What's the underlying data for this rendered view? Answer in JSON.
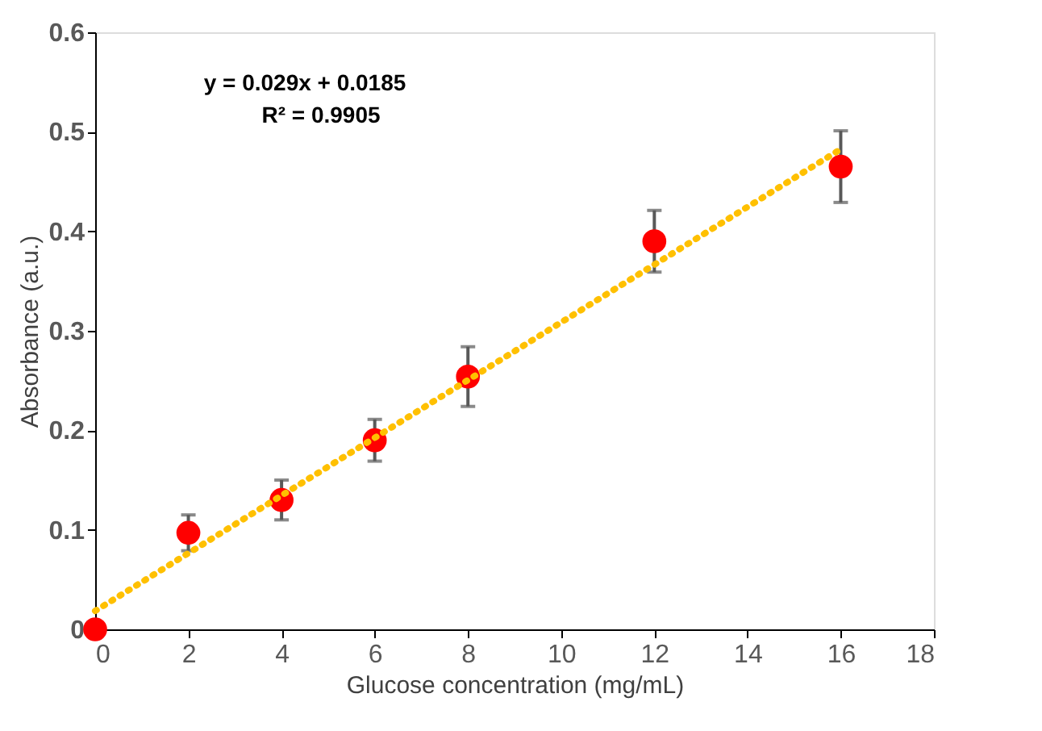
{
  "chart_data": {
    "type": "scatter",
    "xlabel": "Glucose concentration (mg/mL)",
    "ylabel": "Absorbance (a.u.)",
    "annotations": [
      "y = 0.029x + 0.0185",
      "R² = 0.9905"
    ],
    "series": [
      {
        "color": "#ff0000",
        "marker": "circle",
        "x": [
          0,
          2,
          4,
          6,
          8,
          12,
          16
        ],
        "values": [
          0,
          0.097,
          0.13,
          0.19,
          0.254,
          0.39,
          0.465
        ],
        "errors": [
          null,
          0.018,
          0.02,
          0.021,
          0.03,
          0.031,
          0.036
        ]
      },
      {
        "type": "line",
        "color": "#ffc000",
        "line_style": "dotted",
        "marker": "none",
        "x": [
          0,
          16
        ],
        "values": [
          0.0185,
          0.4825
        ]
      }
    ],
    "xlim": [
      0,
      18
    ],
    "xticks": [
      0,
      2,
      4,
      6,
      8,
      10,
      12,
      14,
      16,
      18
    ],
    "ylim": [
      0,
      0.6
    ],
    "yticks": [
      0,
      0.1,
      0.2,
      0.3,
      0.4,
      0.5,
      0.6
    ],
    "grid": false
  }
}
